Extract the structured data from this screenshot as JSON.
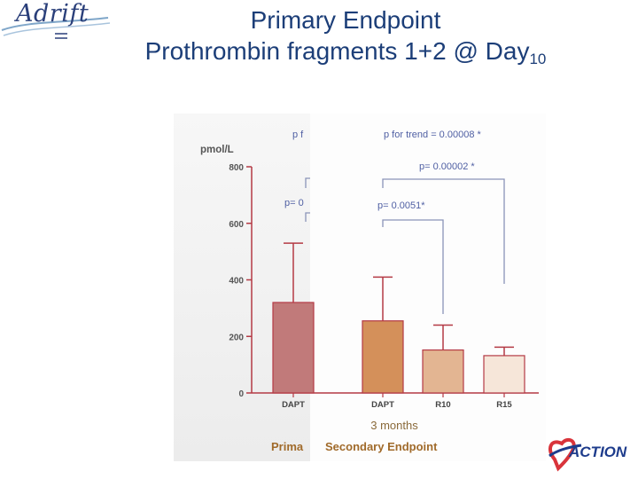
{
  "logo_left": {
    "text": "Adrift"
  },
  "title": {
    "line1": "Primary Endpoint",
    "line2_main": "Prothrombin fragments 1+2 @ Day",
    "line2_sub": "10"
  },
  "logo_right": {
    "text": "ACTION"
  },
  "colors": {
    "title": "#1c3e78",
    "p_text": "#4f5fa3",
    "bracket": "#8a94b8",
    "bottom_label": "#a06a2a",
    "bar_dapt_primary": "#c17a7a",
    "bar_dapt_3m": "#d4905a",
    "bar_r10": "#e3b592",
    "bar_r15": "#f6e6d9",
    "axis": "#b43a45",
    "x_label": "#444444"
  },
  "chart_data": {
    "type": "bar",
    "ylabel": "pmol/L",
    "ylim": [
      0,
      800
    ],
    "yticks": [
      "0",
      "200",
      "400",
      "600",
      "800"
    ],
    "bars": [
      {
        "category": "DAPT",
        "value": 320,
        "error_upper": 530
      },
      {
        "category": "DAPT",
        "value": 255,
        "error_upper": 410
      },
      {
        "category": "R10",
        "value": 152,
        "error_upper": 240
      },
      {
        "category": "R15",
        "value": 132,
        "error_upper": 162
      }
    ],
    "group_label": "3 months",
    "annotations": {
      "left_top": "p f",
      "left_mid": "p= 0",
      "trend": "p for trend = 0.00008 *",
      "p2": "p= 0.00002 *",
      "p1": "p= 0.0051*"
    },
    "bottom_labels": {
      "left": "Prima",
      "right": "Secondary Endpoint"
    }
  }
}
